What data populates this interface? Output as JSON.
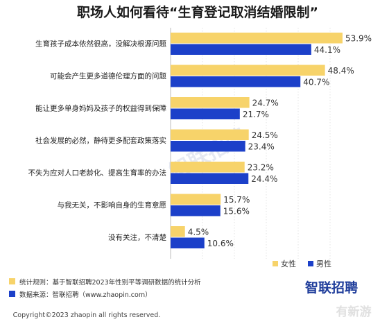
{
  "title": "职场人如何看待“生育登记取消结婚限制”",
  "colors": {
    "female": "#f7d36a",
    "male": "#1c40c9",
    "grid": "#dcdcdc",
    "axis": "#bdbdbd",
    "footnote_a": "#f7d36a",
    "footnote_b": "#1c40c9",
    "brand": "#1f3d9b"
  },
  "chart_data": {
    "type": "bar",
    "orientation": "horizontal",
    "title": "职场人如何看待“生育登记取消结婚限制”",
    "categories": [
      "生育孩子成本依然很高，没解决根源问题",
      "可能会产生更多道德伦理方面的问题",
      "能让更多单身妈妈及孩子的权益得到保障",
      "社会发展的必然，静待更多配套政策落实",
      "不失为应对人口老龄化、提高生育率的办法",
      "与我无关，不影响自身的生育意愿",
      "没有关注，不清楚"
    ],
    "series": [
      {
        "name": "女性",
        "values": [
          53.9,
          48.4,
          24.7,
          24.5,
          23.2,
          15.7,
          4.5
        ]
      },
      {
        "name": "男性",
        "values": [
          44.1,
          40.7,
          21.7,
          23.4,
          24.4,
          15.6,
          10.6
        ]
      }
    ],
    "value_labels": {
      "female": [
        "53.9%",
        "48.4%",
        "24.7%",
        "24.5%",
        "23.2%",
        "15.7%",
        "4.5%"
      ],
      "male": [
        "44.1%",
        "40.7%",
        "21.7%",
        "23.4%",
        "24.4%",
        "15.6%",
        "10.6%"
      ]
    },
    "xlim": [
      0,
      55
    ],
    "grid": true,
    "legend_position": "bottom-right",
    "legend": [
      "女性",
      "男性"
    ]
  },
  "footnotes": [
    "统计规则：基于智联招聘2023年性别平等调研数据的统计分析",
    "数据来源：智联招聘（www.zhaopin.com）"
  ],
  "brand": "智联招聘",
  "watermark": "智联招聘",
  "copyright": "Copyright©2023 zhaopin all rights reserved.",
  "corner_mark": "有新游"
}
